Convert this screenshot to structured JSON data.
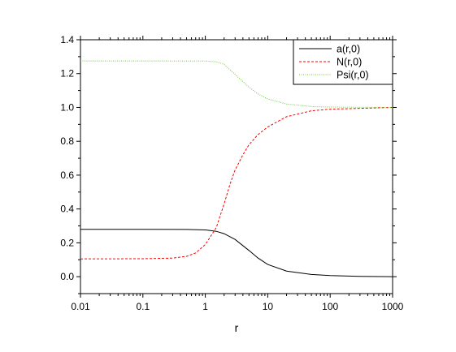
{
  "chart_data": {
    "type": "line",
    "title": "",
    "xlabel": "r",
    "ylabel": "",
    "x_scale": "log",
    "xlim": [
      0.01,
      1000
    ],
    "ylim": [
      -0.1,
      1.4
    ],
    "x_ticks": [
      0.01,
      0.1,
      1,
      10,
      100,
      1000
    ],
    "x_tick_labels": [
      "0.01",
      "0.1",
      "1",
      "10",
      "100",
      "1000"
    ],
    "y_ticks": [
      0.0,
      0.2,
      0.4,
      0.6,
      0.8,
      1.0,
      1.2,
      1.4
    ],
    "y_tick_labels": [
      "0.0",
      "0.2",
      "0.4",
      "0.6",
      "0.8",
      "1.0",
      "1.2",
      "1.4"
    ],
    "grid": false,
    "legend_position": "top-right",
    "series": [
      {
        "name": "a(r,0)",
        "color": "#000000",
        "style": "solid",
        "x": [
          0.01,
          0.1,
          0.5,
          1,
          1.5,
          2,
          3,
          5,
          7,
          10,
          20,
          50,
          100,
          300,
          1000
        ],
        "y": [
          0.28,
          0.28,
          0.279,
          0.276,
          0.268,
          0.254,
          0.22,
          0.155,
          0.11,
          0.072,
          0.033,
          0.013,
          0.007,
          0.002,
          0.0
        ]
      },
      {
        "name": "N(r,0)",
        "color": "#ff0000",
        "style": "dashed",
        "x": [
          0.01,
          0.1,
          0.3,
          0.5,
          0.7,
          1,
          1.5,
          2,
          2.5,
          3,
          4,
          5,
          7,
          10,
          20,
          50,
          100,
          1000
        ],
        "y": [
          0.105,
          0.106,
          0.11,
          0.12,
          0.14,
          0.19,
          0.29,
          0.43,
          0.55,
          0.63,
          0.72,
          0.78,
          0.84,
          0.885,
          0.945,
          0.98,
          0.99,
          1.0
        ]
      },
      {
        "name": "Psi(r,0)",
        "color": "#66cc33",
        "style": "dotted",
        "x": [
          0.01,
          0.1,
          1,
          1.5,
          2,
          3,
          5,
          7,
          10,
          20,
          50,
          100,
          1000
        ],
        "y": [
          1.275,
          1.275,
          1.274,
          1.27,
          1.255,
          1.195,
          1.12,
          1.08,
          1.05,
          1.02,
          1.005,
          1.002,
          1.0
        ]
      }
    ]
  }
}
